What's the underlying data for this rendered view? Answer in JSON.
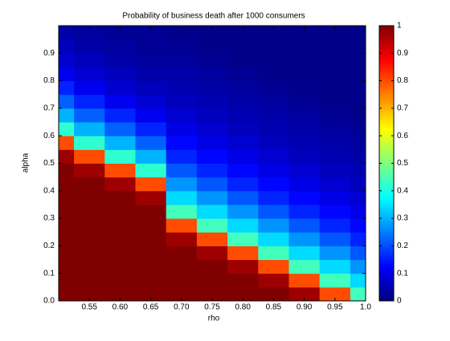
{
  "chart_data": {
    "type": "heatmap",
    "title": "Probability of business death after 1000 consumers",
    "x_label": "rho",
    "y_label": "alpha",
    "colormap": "jet",
    "x": [
      0.5125,
      0.5375,
      0.5625,
      0.5875,
      0.6125,
      0.6375,
      0.6625,
      0.6875,
      0.7125,
      0.7375,
      0.7625,
      0.7875,
      0.8125,
      0.8375,
      0.8625,
      0.8875,
      0.9125,
      0.9375,
      0.9625,
      0.9875
    ],
    "y": [
      0.025,
      0.075,
      0.125,
      0.175,
      0.225,
      0.275,
      0.325,
      0.375,
      0.425,
      0.475,
      0.525,
      0.575,
      0.625,
      0.675,
      0.725,
      0.775,
      0.825,
      0.875,
      0.925,
      0.975
    ],
    "values": [
      [
        1,
        1,
        1,
        1,
        1,
        1,
        1,
        1,
        1,
        1,
        1,
        1,
        1,
        1,
        1,
        0.97,
        0.97,
        0.8,
        0.8,
        0.44
      ],
      [
        1,
        1,
        1,
        1,
        1,
        1,
        1,
        1,
        1,
        1,
        1,
        1,
        1,
        0.97,
        0.97,
        0.8,
        0.8,
        0.44,
        0.44,
        0.34
      ],
      [
        1,
        1,
        1,
        1,
        1,
        1,
        1,
        1,
        1,
        1,
        1,
        0.97,
        0.97,
        0.8,
        0.8,
        0.44,
        0.44,
        0.34,
        0.34,
        0.27
      ],
      [
        1,
        1,
        1,
        1,
        1,
        1,
        1,
        1,
        1,
        0.97,
        0.97,
        0.8,
        0.8,
        0.44,
        0.44,
        0.34,
        0.34,
        0.27,
        0.27,
        0.21
      ],
      [
        1,
        1,
        1,
        1,
        1,
        1,
        1,
        0.97,
        0.97,
        0.8,
        0.8,
        0.44,
        0.44,
        0.34,
        0.34,
        0.27,
        0.27,
        0.21,
        0.21,
        0.16
      ],
      [
        1,
        1,
        1,
        1,
        1,
        1,
        1,
        0.8,
        0.8,
        0.44,
        0.44,
        0.34,
        0.34,
        0.27,
        0.27,
        0.21,
        0.21,
        0.16,
        0.16,
        0.13
      ],
      [
        1,
        1,
        1,
        1,
        1,
        1,
        1,
        0.44,
        0.44,
        0.34,
        0.34,
        0.27,
        0.27,
        0.21,
        0.21,
        0.16,
        0.16,
        0.13,
        0.13,
        0.1
      ],
      [
        1,
        1,
        1,
        1,
        1,
        0.97,
        0.97,
        0.34,
        0.34,
        0.27,
        0.27,
        0.21,
        0.21,
        0.16,
        0.16,
        0.13,
        0.13,
        0.1,
        0.1,
        0.08
      ],
      [
        1,
        1,
        1,
        0.97,
        0.97,
        0.8,
        0.8,
        0.27,
        0.27,
        0.21,
        0.21,
        0.16,
        0.16,
        0.13,
        0.13,
        0.1,
        0.1,
        0.08,
        0.08,
        0.06
      ],
      [
        1,
        0.97,
        0.97,
        0.8,
        0.8,
        0.42,
        0.42,
        0.21,
        0.21,
        0.16,
        0.16,
        0.13,
        0.13,
        0.1,
        0.1,
        0.08,
        0.08,
        0.06,
        0.06,
        0.05
      ],
      [
        0.97,
        0.8,
        0.8,
        0.42,
        0.42,
        0.3,
        0.3,
        0.16,
        0.16,
        0.13,
        0.13,
        0.1,
        0.1,
        0.08,
        0.08,
        0.06,
        0.06,
        0.05,
        0.05,
        0.04
      ],
      [
        0.8,
        0.42,
        0.42,
        0.3,
        0.3,
        0.22,
        0.22,
        0.13,
        0.13,
        0.1,
        0.1,
        0.08,
        0.08,
        0.06,
        0.06,
        0.05,
        0.05,
        0.04,
        0.04,
        0.03
      ],
      [
        0.42,
        0.3,
        0.3,
        0.22,
        0.22,
        0.16,
        0.16,
        0.1,
        0.1,
        0.08,
        0.08,
        0.06,
        0.06,
        0.05,
        0.05,
        0.04,
        0.04,
        0.03,
        0.03,
        0.02
      ],
      [
        0.3,
        0.22,
        0.22,
        0.16,
        0.16,
        0.11,
        0.11,
        0.08,
        0.08,
        0.06,
        0.06,
        0.05,
        0.05,
        0.04,
        0.04,
        0.03,
        0.03,
        0.02,
        0.02,
        0.01
      ],
      [
        0.22,
        0.16,
        0.16,
        0.11,
        0.11,
        0.08,
        0.08,
        0.06,
        0.06,
        0.05,
        0.05,
        0.04,
        0.04,
        0.03,
        0.03,
        0.02,
        0.02,
        0.01,
        0.01,
        0.01
      ],
      [
        0.16,
        0.11,
        0.11,
        0.08,
        0.08,
        0.06,
        0.06,
        0.05,
        0.05,
        0.04,
        0.04,
        0.03,
        0.03,
        0.02,
        0.02,
        0.01,
        0.01,
        0.01,
        0.01,
        0.01
      ],
      [
        0.11,
        0.08,
        0.08,
        0.06,
        0.06,
        0.04,
        0.04,
        0.04,
        0.04,
        0.03,
        0.03,
        0.02,
        0.02,
        0.01,
        0.01,
        0.01,
        0.01,
        0.01,
        0.01,
        0.01
      ],
      [
        0.08,
        0.06,
        0.06,
        0.04,
        0.04,
        0.03,
        0.03,
        0.03,
        0.03,
        0.02,
        0.02,
        0.01,
        0.01,
        0.01,
        0.01,
        0.01,
        0.01,
        0.01,
        0.01,
        0.01
      ],
      [
        0.06,
        0.04,
        0.04,
        0.03,
        0.03,
        0.02,
        0.02,
        0.02,
        0.02,
        0.01,
        0.01,
        0.01,
        0.01,
        0.01,
        0.01,
        0.01,
        0.01,
        0.01,
        0.01,
        0.01
      ],
      [
        0.04,
        0.03,
        0.03,
        0.02,
        0.02,
        0.02,
        0.02,
        0.01,
        0.01,
        0.01,
        0.01,
        0.01,
        0.01,
        0.01,
        0.01,
        0.01,
        0.01,
        0.01,
        0.01,
        0.01
      ]
    ],
    "xlim": [
      0.5,
      1.0
    ],
    "ylim": [
      0,
      1
    ],
    "xticks": [
      0.55,
      {
        "value": 0.6,
        "label": "0.60"
      },
      0.65,
      {
        "value": 0.7,
        "label": "0.70"
      },
      0.75,
      {
        "value": 0.8,
        "label": "0.80"
      },
      0.85,
      {
        "value": 0.9,
        "label": "0.90"
      },
      0.95,
      {
        "value": 1.0,
        "label": "1.0"
      }
    ],
    "yticks": [
      {
        "value": 0,
        "label": "0.0"
      },
      0.1,
      0.2,
      0.3,
      0.4,
      0.5,
      0.6,
      0.7,
      0.8,
      0.9
    ],
    "clim": [
      0,
      1
    ],
    "cticks": [
      0,
      0.1,
      0.2,
      0.3,
      0.4,
      0.5,
      0.6,
      0.7,
      0.8,
      0.9,
      1
    ]
  }
}
